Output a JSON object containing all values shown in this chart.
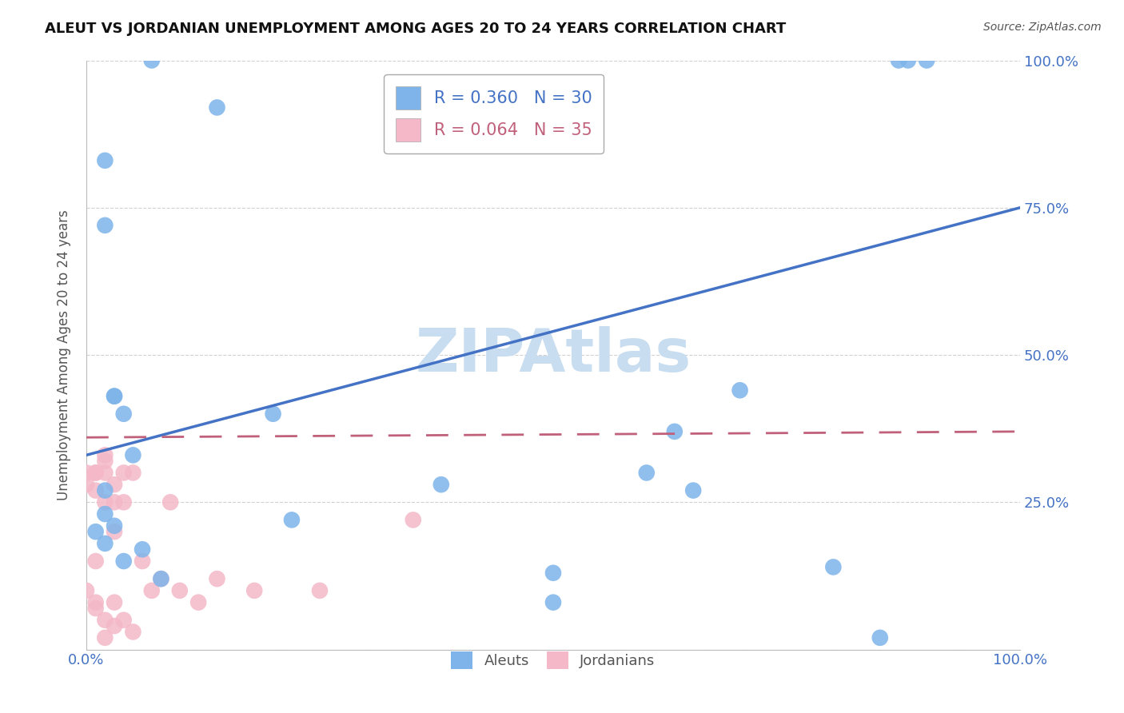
{
  "title": "ALEUT VS JORDANIAN UNEMPLOYMENT AMONG AGES 20 TO 24 YEARS CORRELATION CHART",
  "source": "Source: ZipAtlas.com",
  "tick_color": "#4472c4",
  "ylabel": "Unemployment Among Ages 20 to 24 years",
  "xmin": 0.0,
  "xmax": 1.0,
  "ymin": 0.0,
  "ymax": 1.0,
  "xticks": [
    0.0,
    0.25,
    0.5,
    0.75,
    1.0
  ],
  "xticklabels": [
    "0.0%",
    "",
    "",
    "",
    "100.0%"
  ],
  "yticks": [
    0.0,
    0.25,
    0.5,
    0.75,
    1.0
  ],
  "yticklabels_right": [
    "",
    "25.0%",
    "50.0%",
    "75.0%",
    "100.0%"
  ],
  "aleut_color": "#7eb4ea",
  "jordanian_color": "#f4b8c8",
  "trendline_aleut_color": "#4472c4",
  "trendline_jordan_color": "#c0607a",
  "watermark_color": "#c8ddf0",
  "aleut_R": 0.36,
  "aleut_N": 30,
  "jordan_R": 0.064,
  "jordan_N": 35,
  "aleut_x": [
    0.02,
    0.07,
    0.14,
    0.02,
    0.03,
    0.03,
    0.04,
    0.05,
    0.02,
    0.02,
    0.01,
    0.2,
    0.22,
    0.38,
    0.6,
    0.65,
    0.5,
    0.7,
    0.8,
    0.87,
    0.9,
    0.88,
    0.02,
    0.03,
    0.04,
    0.06,
    0.08,
    0.5,
    0.63,
    0.85
  ],
  "aleut_y": [
    0.83,
    1.0,
    0.92,
    0.72,
    0.43,
    0.43,
    0.4,
    0.33,
    0.27,
    0.23,
    0.2,
    0.4,
    0.22,
    0.28,
    0.3,
    0.27,
    0.08,
    0.44,
    0.14,
    1.0,
    1.0,
    1.0,
    0.18,
    0.21,
    0.15,
    0.17,
    0.12,
    0.13,
    0.37,
    0.02
  ],
  "jordan_x": [
    0.0,
    0.0,
    0.01,
    0.01,
    0.01,
    0.01,
    0.02,
    0.02,
    0.02,
    0.02,
    0.03,
    0.03,
    0.03,
    0.04,
    0.04,
    0.0,
    0.01,
    0.01,
    0.02,
    0.02,
    0.03,
    0.03,
    0.04,
    0.05,
    0.05,
    0.06,
    0.07,
    0.08,
    0.09,
    0.1,
    0.12,
    0.14,
    0.18,
    0.25,
    0.35
  ],
  "jordan_y": [
    0.3,
    0.28,
    0.3,
    0.27,
    0.3,
    0.08,
    0.33,
    0.3,
    0.05,
    0.02,
    0.28,
    0.25,
    0.04,
    0.3,
    0.05,
    0.1,
    0.15,
    0.07,
    0.32,
    0.25,
    0.2,
    0.08,
    0.25,
    0.3,
    0.03,
    0.15,
    0.1,
    0.12,
    0.25,
    0.1,
    0.08,
    0.12,
    0.1,
    0.1,
    0.22
  ],
  "aleut_trendline_x": [
    0.0,
    1.0
  ],
  "aleut_trendline_y": [
    0.33,
    0.75
  ],
  "jordan_trendline_x": [
    0.0,
    1.0
  ],
  "jordan_trendline_y": [
    0.36,
    0.37
  ]
}
